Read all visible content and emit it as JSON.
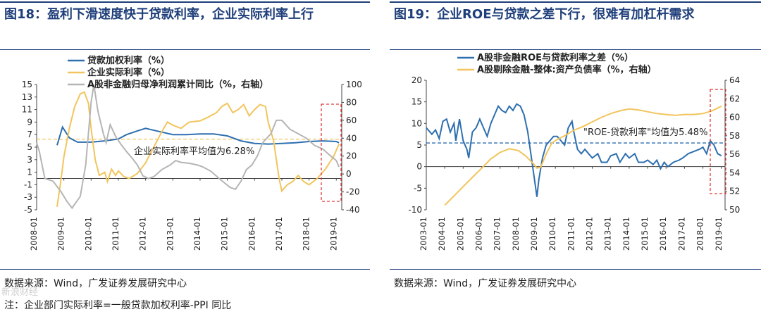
{
  "left": {
    "title_num": "图18：",
    "title_text": "盈利下滑速度快于贷款利率，企业实际利率上行",
    "source": "数据来源：Wind，广发证券发展研究中心",
    "note": "注：企业部门实际利率=一般贷款加权利率-PPI 同比",
    "chart_data": {
      "type": "line",
      "legend": [
        "贷款加权利率（%）",
        "企业实际利率（%）",
        "A股非金融归母净利润累计同比（%，右轴）"
      ],
      "annotation": "企业实际利率平均值为6.28%",
      "x_ticks": [
        "2008-01",
        "2009-01",
        "2010-01",
        "2011-01",
        "2012-01",
        "2013-01",
        "2014-01",
        "2015-01",
        "2016-01",
        "2017-01",
        "2018-01",
        "2019-01"
      ],
      "y_left_ticks": [
        "15",
        "13",
        "11",
        "9",
        "7",
        "5",
        "3",
        "1",
        "-1",
        "-3",
        "-5"
      ],
      "y_right_ticks": [
        "100",
        "80",
        "60",
        "40",
        "20",
        "0",
        "-20",
        "-40"
      ],
      "ylim_left": [
        -5,
        15
      ],
      "ylim_right": [
        -40,
        100
      ],
      "mean_line": 6.28,
      "series": [
        {
          "name": "贷款加权利率（%）",
          "color": "#2e6fb0",
          "axis": "left",
          "points": [
            [
              2008.75,
              5.3
            ],
            [
              2008.95,
              8.2
            ],
            [
              2009.2,
              6.5
            ],
            [
              2009.5,
              5.8
            ],
            [
              2010,
              5.8
            ],
            [
              2010.5,
              6.0
            ],
            [
              2011,
              6.3
            ],
            [
              2011.3,
              7.0
            ],
            [
              2011.7,
              7.6
            ],
            [
              2012,
              8.0
            ],
            [
              2012.5,
              7.5
            ],
            [
              2013,
              7.0
            ],
            [
              2013.5,
              7.0
            ],
            [
              2014,
              7.1
            ],
            [
              2014.5,
              7.1
            ],
            [
              2015,
              6.8
            ],
            [
              2015.5,
              6.0
            ],
            [
              2016,
              5.6
            ],
            [
              2016.5,
              5.5
            ],
            [
              2017,
              5.6
            ],
            [
              2017.5,
              5.7
            ],
            [
              2018,
              5.9
            ],
            [
              2018.5,
              6.0
            ],
            [
              2019,
              5.9
            ],
            [
              2019.1,
              5.7
            ]
          ]
        },
        {
          "name": "企业实际利率（%）",
          "color": "#f2c55c",
          "axis": "left",
          "points": [
            [
              2008.75,
              -4.5
            ],
            [
              2008.9,
              0
            ],
            [
              2009.0,
              3.5
            ],
            [
              2009.2,
              8.0
            ],
            [
              2009.4,
              11.5
            ],
            [
              2009.6,
              13.5
            ],
            [
              2009.75,
              13.8
            ],
            [
              2009.9,
              12.0
            ],
            [
              2010.0,
              8.0
            ],
            [
              2010.15,
              3.0
            ],
            [
              2010.3,
              0.5
            ],
            [
              2010.5,
              1.0
            ],
            [
              2010.6,
              -0.5
            ],
            [
              2010.75,
              1.5
            ],
            [
              2010.9,
              0.5
            ],
            [
              2011.0,
              1.2
            ],
            [
              2011.2,
              0.3
            ],
            [
              2011.4,
              0.0
            ],
            [
              2011.7,
              0.8
            ],
            [
              2012.0,
              2.5
            ],
            [
              2012.3,
              5.0
            ],
            [
              2012.6,
              7.5
            ],
            [
              2012.8,
              9.0
            ],
            [
              2013.0,
              8.5
            ],
            [
              2013.3,
              8.0
            ],
            [
              2013.6,
              9.0
            ],
            [
              2014.0,
              9.2
            ],
            [
              2014.3,
              9.8
            ],
            [
              2014.6,
              10.5
            ],
            [
              2014.8,
              11.5
            ],
            [
              2015.0,
              12.0
            ],
            [
              2015.2,
              10.5
            ],
            [
              2015.4,
              11.0
            ],
            [
              2015.6,
              11.8
            ],
            [
              2015.8,
              10.0
            ],
            [
              2016.0,
              11.0
            ],
            [
              2016.2,
              11.8
            ],
            [
              2016.4,
              11.5
            ],
            [
              2016.5,
              9.0
            ],
            [
              2016.7,
              6.0
            ],
            [
              2016.8,
              3.0
            ],
            [
              2016.9,
              0.0
            ],
            [
              2017.0,
              -2.0
            ],
            [
              2017.2,
              -1.0
            ],
            [
              2017.4,
              -0.5
            ],
            [
              2017.6,
              0.5
            ],
            [
              2017.8,
              -0.5
            ],
            [
              2018.0,
              -1.0
            ],
            [
              2018.3,
              0.0
            ],
            [
              2018.6,
              1.5
            ],
            [
              2018.9,
              3.5
            ],
            [
              2019.1,
              5.5
            ]
          ]
        },
        {
          "name": "A股非金融归母净利润累计同比（%，右轴）",
          "color": "#b5b5b5",
          "axis": "right",
          "points": [
            [
              2008.0,
              35
            ],
            [
              2008.1,
              25
            ],
            [
              2008.3,
              -5
            ],
            [
              2008.6,
              -8
            ],
            [
              2008.9,
              -20
            ],
            [
              2009.1,
              -30
            ],
            [
              2009.3,
              -38
            ],
            [
              2009.6,
              -25
            ],
            [
              2009.8,
              10
            ],
            [
              2010.0,
              80
            ],
            [
              2010.1,
              100
            ],
            [
              2010.25,
              70
            ],
            [
              2010.45,
              45
            ],
            [
              2010.55,
              35
            ],
            [
              2010.7,
              55
            ],
            [
              2010.9,
              42
            ],
            [
              2011.1,
              33
            ],
            [
              2011.3,
              25
            ],
            [
              2011.5,
              18
            ],
            [
              2011.7,
              10
            ],
            [
              2011.9,
              -2
            ],
            [
              2012.1,
              -5
            ],
            [
              2012.3,
              -3
            ],
            [
              2012.6,
              5
            ],
            [
              2012.9,
              10
            ],
            [
              2013.1,
              15
            ],
            [
              2013.3,
              13
            ],
            [
              2013.6,
              12
            ],
            [
              2013.9,
              10
            ],
            [
              2014.1,
              8
            ],
            [
              2014.4,
              3
            ],
            [
              2014.7,
              -5
            ],
            [
              2014.9,
              -10
            ],
            [
              2015.1,
              -15
            ],
            [
              2015.3,
              -17
            ],
            [
              2015.5,
              -8
            ],
            [
              2015.7,
              5
            ],
            [
              2015.9,
              10
            ],
            [
              2016.1,
              20
            ],
            [
              2016.3,
              35
            ],
            [
              2016.6,
              45
            ],
            [
              2016.8,
              60
            ],
            [
              2017.0,
              60
            ],
            [
              2017.3,
              50
            ],
            [
              2017.6,
              45
            ],
            [
              2017.9,
              40
            ],
            [
              2018.2,
              32
            ],
            [
              2018.5,
              28
            ],
            [
              2018.8,
              20
            ],
            [
              2019.0,
              15
            ],
            [
              2019.1,
              8
            ]
          ]
        }
      ]
    }
  },
  "right": {
    "title_num": "图19：",
    "title_text": "企业ROE与贷款之差下行，很难有加杠杆需求",
    "source": "数据来源：Wind，广发证券发展研究中心",
    "chart_data": {
      "type": "line",
      "legend": [
        "A股非金融ROE与贷款利率之差（%）",
        "A股剔除金融-整体:资产负债率（%，右轴）"
      ],
      "annotation": "\"ROE-贷款利率\"均值为5.48%",
      "x_ticks": [
        "2003-01",
        "2004-01",
        "2005-01",
        "2006-01",
        "2007-01",
        "2008-01",
        "2009-01",
        "2010-01",
        "2011-01",
        "2012-01",
        "2013-01",
        "2014-01",
        "2015-01",
        "2016-01",
        "2017-01",
        "2018-01",
        "2019-01"
      ],
      "y_left_ticks": [
        "20",
        "15",
        "10",
        "5",
        "0",
        "-5",
        "-10"
      ],
      "y_right_ticks": [
        "64",
        "62",
        "60",
        "58",
        "56",
        "54",
        "52",
        "50"
      ],
      "ylim_left": [
        -10,
        20
      ],
      "ylim_right": [
        50,
        64
      ],
      "mean_line": 5.48,
      "series": [
        {
          "name": "A股非金融ROE与贷款利率之差（%）",
          "color": "#2e6fb0",
          "axis": "left",
          "points": [
            [
              2003.0,
              9
            ],
            [
              2003.3,
              7.5
            ],
            [
              2003.5,
              8.5
            ],
            [
              2003.7,
              6.5
            ],
            [
              2003.9,
              10.5
            ],
            [
              2004.1,
              11
            ],
            [
              2004.3,
              8
            ],
            [
              2004.5,
              10
            ],
            [
              2004.6,
              6
            ],
            [
              2004.8,
              11
            ],
            [
              2005.0,
              6
            ],
            [
              2005.2,
              4
            ],
            [
              2005.3,
              2
            ],
            [
              2005.5,
              8
            ],
            [
              2005.7,
              9
            ],
            [
              2005.9,
              11
            ],
            [
              2006.1,
              9
            ],
            [
              2006.3,
              7
            ],
            [
              2006.5,
              10
            ],
            [
              2006.7,
              12
            ],
            [
              2006.9,
              14
            ],
            [
              2007.1,
              13
            ],
            [
              2007.3,
              12.5
            ],
            [
              2007.5,
              14
            ],
            [
              2007.7,
              13
            ],
            [
              2007.9,
              14.5
            ],
            [
              2008.1,
              14
            ],
            [
              2008.3,
              12
            ],
            [
              2008.5,
              8
            ],
            [
              2008.7,
              2
            ],
            [
              2008.9,
              -4
            ],
            [
              2009.0,
              -7
            ],
            [
              2009.1,
              -3
            ],
            [
              2009.3,
              2
            ],
            [
              2009.5,
              5
            ],
            [
              2009.7,
              6
            ],
            [
              2009.9,
              7
            ],
            [
              2010.1,
              7
            ],
            [
              2010.3,
              6
            ],
            [
              2010.5,
              5
            ],
            [
              2010.7,
              9
            ],
            [
              2010.9,
              10.5
            ],
            [
              2011.0,
              8
            ],
            [
              2011.2,
              4
            ],
            [
              2011.4,
              3
            ],
            [
              2011.6,
              4
            ],
            [
              2011.8,
              3
            ],
            [
              2012.0,
              2
            ],
            [
              2012.3,
              3
            ],
            [
              2012.5,
              1
            ],
            [
              2012.8,
              1
            ],
            [
              2013.0,
              2.5
            ],
            [
              2013.3,
              3
            ],
            [
              2013.5,
              1
            ],
            [
              2013.8,
              3
            ],
            [
              2014.0,
              2
            ],
            [
              2014.3,
              3
            ],
            [
              2014.5,
              1
            ],
            [
              2014.8,
              1
            ],
            [
              2015.0,
              1.5
            ],
            [
              2015.3,
              0.5
            ],
            [
              2015.5,
              1.5
            ],
            [
              2015.7,
              -0.5
            ],
            [
              2015.9,
              1
            ],
            [
              2016.1,
              0
            ],
            [
              2016.4,
              1
            ],
            [
              2016.7,
              1.5
            ],
            [
              2016.9,
              2
            ],
            [
              2017.2,
              3
            ],
            [
              2017.5,
              3.5
            ],
            [
              2017.8,
              4
            ],
            [
              2018.0,
              4.5
            ],
            [
              2018.2,
              3
            ],
            [
              2018.4,
              6
            ],
            [
              2018.6,
              5
            ],
            [
              2018.8,
              3
            ],
            [
              2019.0,
              2.5
            ]
          ]
        },
        {
          "name": "A股剔除金融-整体:资产负债率（%，右轴）",
          "color": "#f2c55c",
          "axis": "right",
          "points": [
            [
              2004.0,
              50.5
            ],
            [
              2004.5,
              51.5
            ],
            [
              2005.0,
              52.5
            ],
            [
              2005.5,
              53.5
            ],
            [
              2006.0,
              54.5
            ],
            [
              2006.5,
              55.5
            ],
            [
              2007.0,
              56.2
            ],
            [
              2007.5,
              56.6
            ],
            [
              2008.0,
              56.4
            ],
            [
              2008.4,
              55.8
            ],
            [
              2008.8,
              55.0
            ],
            [
              2009.0,
              54.5
            ],
            [
              2009.2,
              54.6
            ],
            [
              2009.5,
              56.0
            ],
            [
              2009.8,
              57.2
            ],
            [
              2010.1,
              57.6
            ],
            [
              2010.5,
              58.0
            ],
            [
              2011.0,
              58.6
            ],
            [
              2011.5,
              59.0
            ],
            [
              2012.0,
              59.5
            ],
            [
              2012.5,
              60.0
            ],
            [
              2013.0,
              60.4
            ],
            [
              2013.5,
              60.7
            ],
            [
              2014.0,
              60.9
            ],
            [
              2014.5,
              60.8
            ],
            [
              2015.0,
              60.6
            ],
            [
              2015.5,
              60.4
            ],
            [
              2016.0,
              60.3
            ],
            [
              2016.5,
              60.2
            ],
            [
              2017.0,
              60.3
            ],
            [
              2017.5,
              60.3
            ],
            [
              2018.0,
              60.4
            ],
            [
              2018.5,
              60.7
            ],
            [
              2019.0,
              61.2
            ]
          ]
        }
      ]
    }
  },
  "watermark": "新浪财经"
}
